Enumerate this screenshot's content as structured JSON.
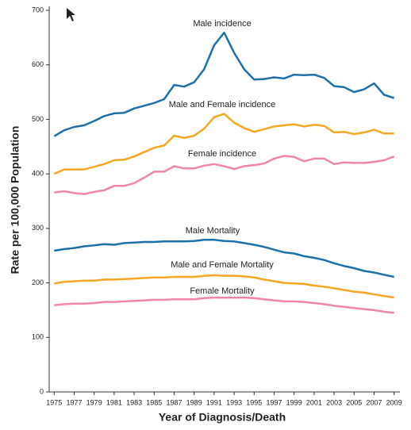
{
  "chart_data": {
    "type": "line",
    "x_label": "Year of Diagnosis/Death",
    "y_label": "Rate per 100,000 Population",
    "x": [
      1975,
      1976,
      1977,
      1978,
      1979,
      1980,
      1981,
      1982,
      1983,
      1984,
      1985,
      1986,
      1987,
      1988,
      1989,
      1990,
      1991,
      1992,
      1993,
      1994,
      1995,
      1996,
      1997,
      1998,
      1999,
      2000,
      2001,
      2002,
      2003,
      2004,
      2005,
      2006,
      2007,
      2008,
      2009
    ],
    "xlim": [
      1974.5,
      2009.5
    ],
    "xticks": [
      1975,
      1977,
      1979,
      1981,
      1983,
      1985,
      1987,
      1989,
      1991,
      1993,
      1995,
      1997,
      1999,
      2001,
      2003,
      2005,
      2007,
      2009
    ],
    "ylim": [
      0,
      700
    ],
    "yticks": [
      0,
      100,
      200,
      300,
      400,
      500,
      600,
      700
    ],
    "series": [
      {
        "name": "Male incidence",
        "color": "#1f6fa8",
        "values": [
          469,
          480,
          486,
          489,
          497,
          506,
          511,
          512,
          520,
          525,
          530,
          537,
          563,
          560,
          568,
          592,
          636,
          659,
          622,
          592,
          573,
          574,
          577,
          575,
          582,
          581,
          582,
          576,
          561,
          559,
          550,
          555,
          566,
          545,
          539
        ]
      },
      {
        "name": "Male and Female incidence",
        "color": "#f5a623",
        "values": [
          400,
          408,
          408,
          408,
          413,
          418,
          425,
          426,
          432,
          440,
          448,
          452,
          470,
          466,
          470,
          483,
          504,
          510,
          494,
          484,
          477,
          482,
          487,
          489,
          491,
          487,
          490,
          488,
          476,
          477,
          473,
          476,
          481,
          474,
          474
        ]
      },
      {
        "name": "Female incidence",
        "color": "#ee86a8",
        "values": [
          366,
          368,
          365,
          363,
          367,
          370,
          378,
          378,
          383,
          393,
          404,
          404,
          414,
          410,
          410,
          415,
          418,
          414,
          409,
          414,
          416,
          419,
          428,
          433,
          431,
          423,
          428,
          428,
          418,
          421,
          420,
          420,
          422,
          425,
          432
        ]
      },
      {
        "name": "Male Mortality",
        "color": "#1f6fa8",
        "values": [
          259,
          262,
          264,
          267,
          269,
          271,
          270,
          273,
          274,
          275,
          275,
          276,
          276,
          276,
          277,
          279,
          279,
          277,
          276,
          273,
          270,
          266,
          261,
          256,
          254,
          249,
          246,
          242,
          236,
          231,
          227,
          222,
          219,
          215,
          211
        ]
      },
      {
        "name": "Male and Female Mortality",
        "color": "#f5a623",
        "values": [
          199,
          202,
          203,
          204,
          204,
          206,
          206,
          207,
          208,
          209,
          210,
          210,
          211,
          211,
          211,
          213,
          214,
          213,
          213,
          212,
          210,
          206,
          203,
          200,
          199,
          198,
          195,
          193,
          190,
          187,
          184,
          182,
          179,
          176,
          173
        ]
      },
      {
        "name": "Female Mortality",
        "color": "#ee86a8",
        "values": [
          159,
          161,
          162,
          162,
          163,
          165,
          165,
          166,
          167,
          168,
          169,
          169,
          170,
          170,
          170,
          172,
          173,
          173,
          173,
          173,
          172,
          170,
          168,
          166,
          166,
          165,
          163,
          161,
          158,
          156,
          154,
          152,
          150,
          147,
          145
        ]
      }
    ]
  }
}
